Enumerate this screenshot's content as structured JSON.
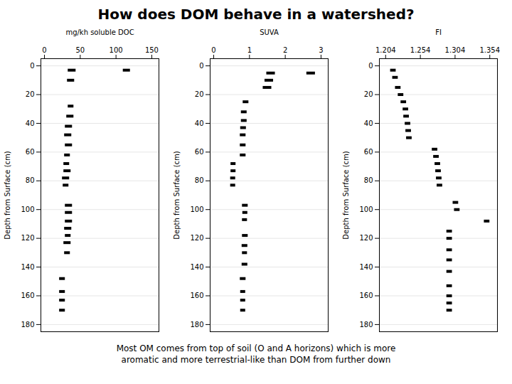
{
  "title": "How does DOM behave in a watershed?",
  "subtitle": "Most OM comes from top of soil (O and A horizons) which is more\naromatic and more terrestrial-like than DOM from further down",
  "chart_data": [
    {
      "type": "errorbar",
      "xlabel": "mg/kh soluble DOC",
      "ylabel": "Depth from Surface (cm)",
      "xlim": [
        -5,
        160
      ],
      "xticks": [
        0,
        50,
        100,
        150
      ],
      "ylim": [
        185,
        -5
      ],
      "yticks": [
        0,
        20,
        40,
        60,
        80,
        100,
        120,
        140,
        160,
        180
      ],
      "grid": "y",
      "color": "black",
      "y": [
        3,
        3,
        10,
        28,
        35,
        42,
        48,
        55,
        62,
        68,
        73,
        78,
        83,
        97,
        102,
        108,
        113,
        118,
        123,
        130,
        148,
        157,
        163,
        170
      ],
      "values": [
        38,
        115,
        37,
        37,
        36,
        34,
        33,
        34,
        32,
        31,
        32,
        30,
        30,
        34,
        34,
        34,
        33,
        33,
        32,
        32,
        25,
        25,
        25,
        25
      ],
      "err_lo": [
        5,
        5,
        5,
        4,
        5,
        5,
        5,
        5,
        4,
        4,
        5,
        5,
        4,
        5,
        5,
        5,
        5,
        4,
        5,
        4,
        4,
        4,
        4,
        4
      ],
      "err_hi": [
        6,
        5,
        5,
        4,
        5,
        5,
        5,
        5,
        4,
        4,
        5,
        5,
        4,
        5,
        5,
        5,
        5,
        4,
        5,
        4,
        4,
        4,
        4,
        4
      ]
    },
    {
      "type": "errorbar",
      "xlabel": "SUVA",
      "ylabel": "Depth from Surface (cm)",
      "xlim": [
        -0.1,
        3.2
      ],
      "xticks": [
        0,
        1,
        2,
        3
      ],
      "ylim": [
        185,
        -5
      ],
      "yticks": [
        0,
        20,
        40,
        60,
        80,
        100,
        120,
        140,
        160,
        180
      ],
      "grid": "y",
      "color": "black",
      "y": [
        5,
        10,
        15,
        5,
        25,
        32,
        38,
        43,
        48,
        55,
        62,
        68,
        73,
        78,
        83,
        97,
        102,
        107,
        118,
        125,
        130,
        138,
        148,
        157,
        163,
        170
      ],
      "values": [
        1.6,
        1.55,
        1.5,
        2.72,
        0.9,
        0.85,
        0.85,
        0.83,
        0.82,
        0.82,
        0.82,
        0.55,
        0.55,
        0.54,
        0.54,
        0.88,
        0.88,
        0.87,
        0.88,
        0.87,
        0.87,
        0.87,
        0.82,
        0.82,
        0.82,
        0.82
      ],
      "err_lo": [
        0.12,
        0.12,
        0.12,
        0.12,
        0.08,
        0.08,
        0.08,
        0.08,
        0.08,
        0.08,
        0.08,
        0.07,
        0.07,
        0.07,
        0.07,
        0.08,
        0.07,
        0.07,
        0.08,
        0.08,
        0.07,
        0.08,
        0.08,
        0.07,
        0.07,
        0.07
      ],
      "err_hi": [
        0.12,
        0.12,
        0.12,
        0.12,
        0.08,
        0.08,
        0.08,
        0.08,
        0.08,
        0.08,
        0.08,
        0.07,
        0.07,
        0.07,
        0.07,
        0.08,
        0.07,
        0.07,
        0.08,
        0.08,
        0.07,
        0.08,
        0.08,
        0.07,
        0.07,
        0.07
      ]
    },
    {
      "type": "errorbar",
      "xlabel": "FI",
      "ylabel": "Depth from Surface (cm)",
      "xlim": [
        1.195,
        1.365
      ],
      "xticks": [
        1.204,
        1.254,
        1.304,
        1.354
      ],
      "ylim": [
        185,
        -5
      ],
      "yticks": [
        0,
        20,
        40,
        60,
        80,
        100,
        120,
        140,
        160,
        180
      ],
      "grid": "y",
      "color": "black",
      "y": [
        3,
        8,
        15,
        20,
        25,
        30,
        35,
        40,
        45,
        50,
        58,
        63,
        68,
        73,
        78,
        83,
        95,
        100,
        108,
        115,
        120,
        128,
        135,
        143,
        153,
        160,
        165,
        170
      ],
      "values": [
        1.215,
        1.218,
        1.222,
        1.226,
        1.23,
        1.233,
        1.234,
        1.236,
        1.237,
        1.238,
        1.275,
        1.277,
        1.279,
        1.28,
        1.281,
        1.282,
        1.305,
        1.307,
        1.35,
        1.296,
        1.296,
        1.296,
        1.296,
        1.296,
        1.296,
        1.296,
        1.296,
        1.296
      ],
      "err_lo": [
        0.004,
        0.004,
        0.004,
        0.004,
        0.004,
        0.004,
        0.004,
        0.004,
        0.004,
        0.004,
        0.004,
        0.004,
        0.004,
        0.004,
        0.004,
        0.004,
        0.004,
        0.004,
        0.004,
        0.004,
        0.004,
        0.004,
        0.004,
        0.004,
        0.004,
        0.004,
        0.004,
        0.004
      ],
      "err_hi": [
        0.004,
        0.004,
        0.004,
        0.004,
        0.004,
        0.004,
        0.004,
        0.004,
        0.004,
        0.004,
        0.004,
        0.004,
        0.004,
        0.004,
        0.004,
        0.004,
        0.004,
        0.004,
        0.004,
        0.004,
        0.004,
        0.004,
        0.004,
        0.004,
        0.004,
        0.004,
        0.004,
        0.004
      ]
    }
  ]
}
